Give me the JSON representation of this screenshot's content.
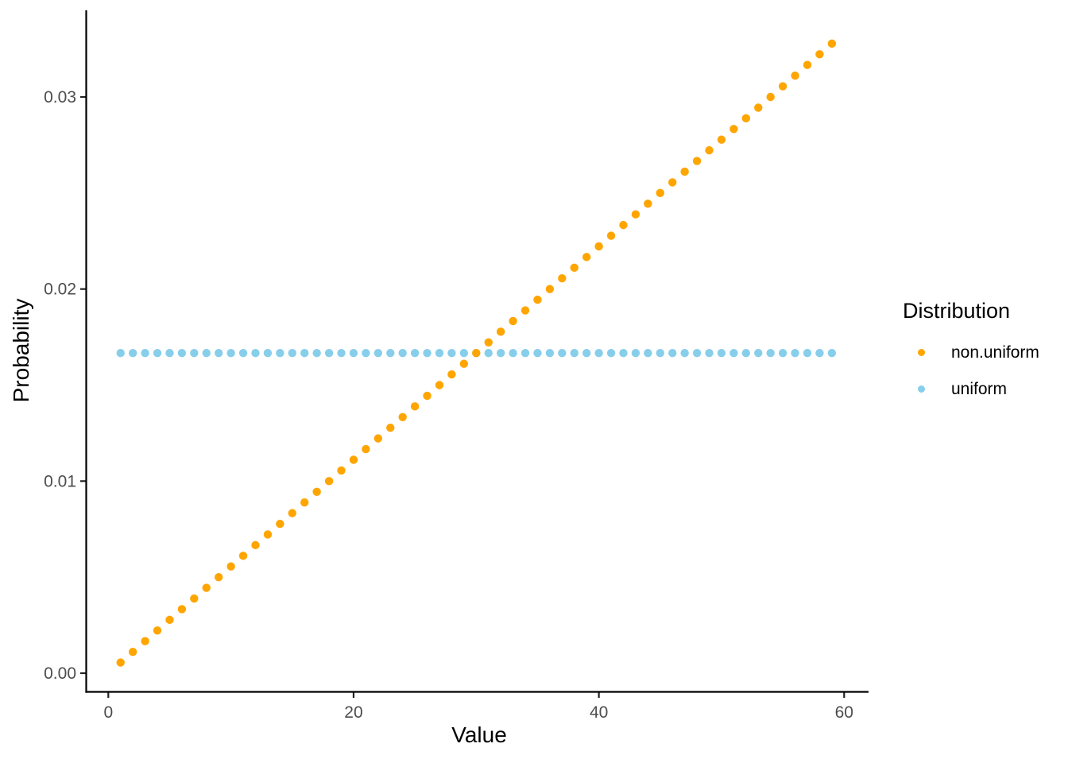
{
  "chart_data": {
    "type": "scatter",
    "title": "",
    "xlabel": "Value",
    "ylabel": "Probability",
    "legend_title": "Distribution",
    "legend_position": "right",
    "grid": "off",
    "xlim": [
      0,
      62
    ],
    "ylim": [
      0,
      0.0337
    ],
    "x_ticks": [
      {
        "value": 0,
        "label": "0"
      },
      {
        "value": 20,
        "label": "20"
      },
      {
        "value": 40,
        "label": "40"
      },
      {
        "value": 60,
        "label": "60"
      }
    ],
    "y_ticks": [
      {
        "value": 0.0,
        "label": "0.00"
      },
      {
        "value": 0.01,
        "label": "0.01"
      },
      {
        "value": 0.02,
        "label": "0.02"
      },
      {
        "value": 0.03,
        "label": "0.03"
      }
    ],
    "x": [
      1,
      2,
      3,
      4,
      5,
      6,
      7,
      8,
      9,
      10,
      11,
      12,
      13,
      14,
      15,
      16,
      17,
      18,
      19,
      20,
      21,
      22,
      23,
      24,
      25,
      26,
      27,
      28,
      29,
      30,
      31,
      32,
      33,
      34,
      35,
      36,
      37,
      38,
      39,
      40,
      41,
      42,
      43,
      44,
      45,
      46,
      47,
      48,
      49,
      50,
      51,
      52,
      53,
      54,
      55,
      56,
      57,
      58,
      59
    ],
    "series": [
      {
        "name": "non.uniform",
        "color": "#FFA500",
        "values": [
          0.000556,
          0.001111,
          0.001667,
          0.002222,
          0.002778,
          0.003333,
          0.003889,
          0.004444,
          0.005,
          0.005556,
          0.006111,
          0.006667,
          0.007222,
          0.007778,
          0.008333,
          0.008889,
          0.009444,
          0.01,
          0.010556,
          0.011111,
          0.011667,
          0.012222,
          0.012778,
          0.013333,
          0.013889,
          0.014444,
          0.015,
          0.015556,
          0.016111,
          0.016667,
          0.017222,
          0.017778,
          0.018333,
          0.018889,
          0.019444,
          0.02,
          0.020556,
          0.021111,
          0.021667,
          0.022222,
          0.022778,
          0.023333,
          0.023889,
          0.024444,
          0.025,
          0.025556,
          0.026111,
          0.026667,
          0.027222,
          0.027778,
          0.028333,
          0.028889,
          0.029444,
          0.03,
          0.030556,
          0.031111,
          0.031667,
          0.032222,
          0.032778
        ]
      },
      {
        "name": "uniform",
        "color": "#87CEEB",
        "values": [
          0.016667,
          0.016667,
          0.016667,
          0.016667,
          0.016667,
          0.016667,
          0.016667,
          0.016667,
          0.016667,
          0.016667,
          0.016667,
          0.016667,
          0.016667,
          0.016667,
          0.016667,
          0.016667,
          0.016667,
          0.016667,
          0.016667,
          0.016667,
          0.016667,
          0.016667,
          0.016667,
          0.016667,
          0.016667,
          0.016667,
          0.016667,
          0.016667,
          0.016667,
          0.016667,
          0.016667,
          0.016667,
          0.016667,
          0.016667,
          0.016667,
          0.016667,
          0.016667,
          0.016667,
          0.016667,
          0.016667,
          0.016667,
          0.016667,
          0.016667,
          0.016667,
          0.016667,
          0.016667,
          0.016667,
          0.016667,
          0.016667,
          0.016667,
          0.016667,
          0.016667,
          0.016667,
          0.016667,
          0.016667,
          0.016667,
          0.016667,
          0.016667,
          0.016667
        ]
      }
    ],
    "axis_text_color": "#4d4d4d",
    "axis_line_color": "#000000"
  }
}
